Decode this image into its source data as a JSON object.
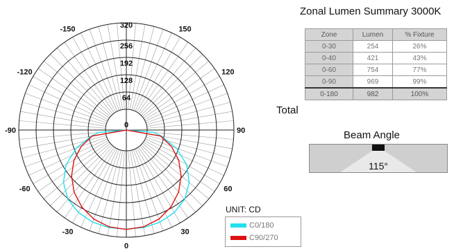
{
  "chart_data": {
    "type": "polar",
    "unit_label": "UNIT: CD",
    "radial_ticks": [
      64,
      128,
      192,
      256,
      320
    ],
    "center_label": "0",
    "rmax": 320,
    "angle_labels": [
      "0",
      "30",
      "-30",
      "60",
      "-60",
      "90",
      "-90",
      "120",
      "-120",
      "150",
      "-150",
      "320"
    ],
    "series": [
      {
        "name": "C0/180",
        "color": "#22e0ee",
        "points": [
          [
            0,
            290
          ],
          [
            10,
            290
          ],
          [
            20,
            286
          ],
          [
            30,
            276
          ],
          [
            40,
            258
          ],
          [
            50,
            226
          ],
          [
            60,
            180
          ],
          [
            70,
            120
          ],
          [
            80,
            55
          ],
          [
            85,
            24
          ],
          [
            90,
            0
          ]
        ]
      },
      {
        "name": "C90/270",
        "color": "#dd1111",
        "points": [
          [
            0,
            291
          ],
          [
            10,
            287
          ],
          [
            20,
            274
          ],
          [
            30,
            252
          ],
          [
            40,
            223
          ],
          [
            50,
            187
          ],
          [
            60,
            146
          ],
          [
            70,
            100
          ],
          [
            80,
            51
          ],
          [
            90,
            0
          ]
        ]
      }
    ]
  },
  "zonal": {
    "title": "Zonal Lumen Summary 3000K",
    "headers": [
      "Zone",
      "Lumen",
      "% Fixture"
    ],
    "rows": [
      [
        "0-30",
        "254",
        "26%"
      ],
      [
        "0-40",
        "421",
        "43%"
      ],
      [
        "0-60",
        "754",
        "77%"
      ],
      [
        "0-90",
        "969",
        "99%"
      ]
    ],
    "total_label": "Total",
    "total_row": [
      "0-180",
      "982",
      "100%"
    ]
  },
  "beam": {
    "title": "Beam Angle",
    "value": "115°"
  },
  "colors": {
    "cyan": "#22e0ee",
    "red": "#dd1111",
    "table_gray": "#d4d4d4"
  }
}
